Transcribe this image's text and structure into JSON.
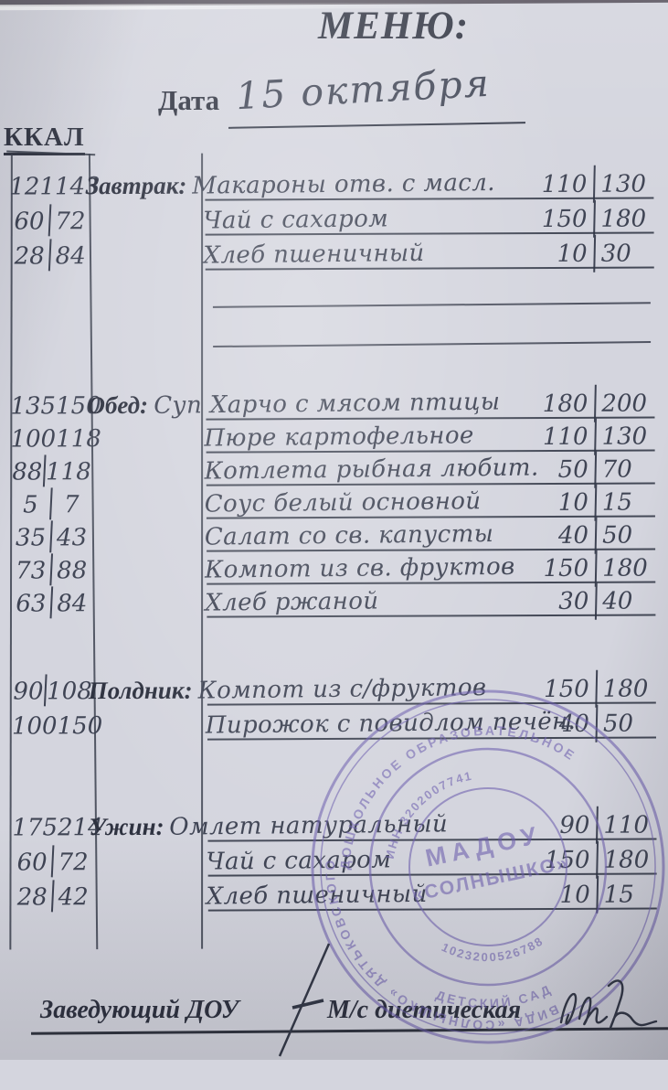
{
  "title": "МЕНЮ:",
  "date": {
    "label": "Дата",
    "value": "15 октября"
  },
  "kcal_header": "ККАЛ",
  "sections": [
    {
      "label": "Завтрак:",
      "rows": [
        {
          "kcal": [
            "121",
            "143"
          ],
          "dish": "Макароны отв. с масл.",
          "portions": [
            "110",
            "130"
          ]
        },
        {
          "kcal": [
            "60",
            "72"
          ],
          "dish": "Чай с сахаром",
          "portions": [
            "150",
            "180"
          ]
        },
        {
          "kcal": [
            "28",
            "84"
          ],
          "dish": "Хлеб пшеничный",
          "portions": [
            "10",
            "30"
          ]
        }
      ]
    },
    {
      "label": "Обед:",
      "rows": [
        {
          "kcal": [
            "135",
            "150"
          ],
          "dish": "Суп Харчо с мясом птицы",
          "portions": [
            "180",
            "200"
          ]
        },
        {
          "kcal": [
            "100",
            "118"
          ],
          "dish": "Пюре картофельное",
          "portions": [
            "110",
            "130"
          ]
        },
        {
          "kcal": [
            "88",
            "118"
          ],
          "dish": "Котлета рыбная любит.",
          "portions": [
            "50",
            "70"
          ]
        },
        {
          "kcal": [
            "5",
            "7"
          ],
          "dish": "Соус белый основной",
          "portions": [
            "10",
            "15"
          ]
        },
        {
          "kcal": [
            "35",
            "43"
          ],
          "dish": "Салат со св. капусты",
          "portions": [
            "40",
            "50"
          ]
        },
        {
          "kcal": [
            "73",
            "88"
          ],
          "dish": "Компот из св. фруктов",
          "portions": [
            "150",
            "180"
          ]
        },
        {
          "kcal": [
            "63",
            "84"
          ],
          "dish": "Хлеб ржаной",
          "portions": [
            "30",
            "40"
          ]
        }
      ]
    },
    {
      "label": "Полдник:",
      "rows": [
        {
          "kcal": [
            "90",
            "108"
          ],
          "dish": "Компот из с/фруктов",
          "portions": [
            "150",
            "180"
          ]
        },
        {
          "kcal": [
            "100",
            "150"
          ],
          "dish": "Пирожок с повидлом печён.",
          "portions": [
            "40",
            "50"
          ]
        }
      ]
    },
    {
      "label": "Ужин:",
      "rows": [
        {
          "kcal": [
            "175",
            "214"
          ],
          "dish": "Омлет натуральный",
          "portions": [
            "90",
            "110"
          ]
        },
        {
          "kcal": [
            "60",
            "72"
          ],
          "dish": "Чай с сахаром",
          "portions": [
            "150",
            "180"
          ]
        },
        {
          "kcal": [
            "28",
            "42"
          ],
          "dish": "Хлеб пшеничный",
          "portions": [
            "10",
            "15"
          ]
        }
      ]
    }
  ],
  "footer": {
    "left_label": "Заведующий ДОУ",
    "right_label": "М/с диетическая"
  },
  "stamp": {
    "center_line1": "МАДОУ",
    "center_line2": "«СОЛНЫШКО»",
    "arc_top": "ДОШКОЛЬНОЕ ОБРАЗОВАТЕЛЬНОЕ",
    "arc_right": "ВИДА «СОЛНЫШКО» ДЯТЬКОВСКОГО",
    "arc_inn": "ИНН 3202007741",
    "arc_ogrn": "1023200526788",
    "arc_bottom": "ДЕТСКИЙ САД",
    "color": "#6d5fae"
  },
  "colors": {
    "ink": "#3f4454",
    "printed": "#2e3240",
    "paper": "#d4d5de"
  }
}
